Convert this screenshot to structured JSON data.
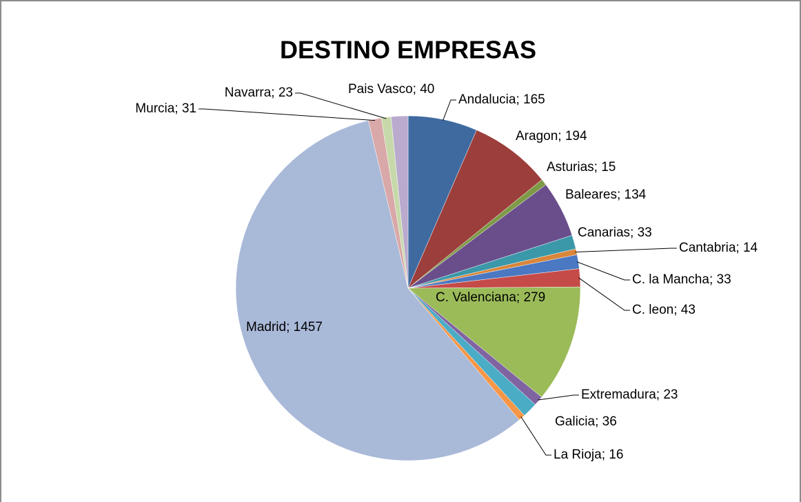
{
  "chart_data": {
    "type": "pie",
    "title": "DESTINO EMPRESAS",
    "values": [
      165,
      194,
      15,
      134,
      33,
      14,
      33,
      43,
      279,
      23,
      36,
      16,
      1457,
      31,
      23,
      40
    ],
    "value_labels": [
      "Andalucia; 165",
      "Aragon; 194",
      "Asturias; 15",
      "Baleares; 134",
      "Canarias; 33",
      "Cantabria; 14",
      "C. la Mancha; 33",
      "C. leon; 43",
      "C. Valenciana; 279",
      "Extremadura; 23",
      "Galicia; 36",
      "La Rioja; 16",
      "Madrid; 1457",
      "Murcia; 31",
      "Navarra; 23",
      "Pais Vasco; 40"
    ],
    "colors": [
      "#3e6aa0",
      "#9c3e3b",
      "#7e9a47",
      "#6a4e8c",
      "#3a98a9",
      "#d9853a",
      "#4a78c2",
      "#c54b48",
      "#9bbb59",
      "#8064a2",
      "#4bacc6",
      "#f79646",
      "#a9b9d8",
      "#d9a8a8",
      "#c7d9aa",
      "#baaacd"
    ]
  }
}
